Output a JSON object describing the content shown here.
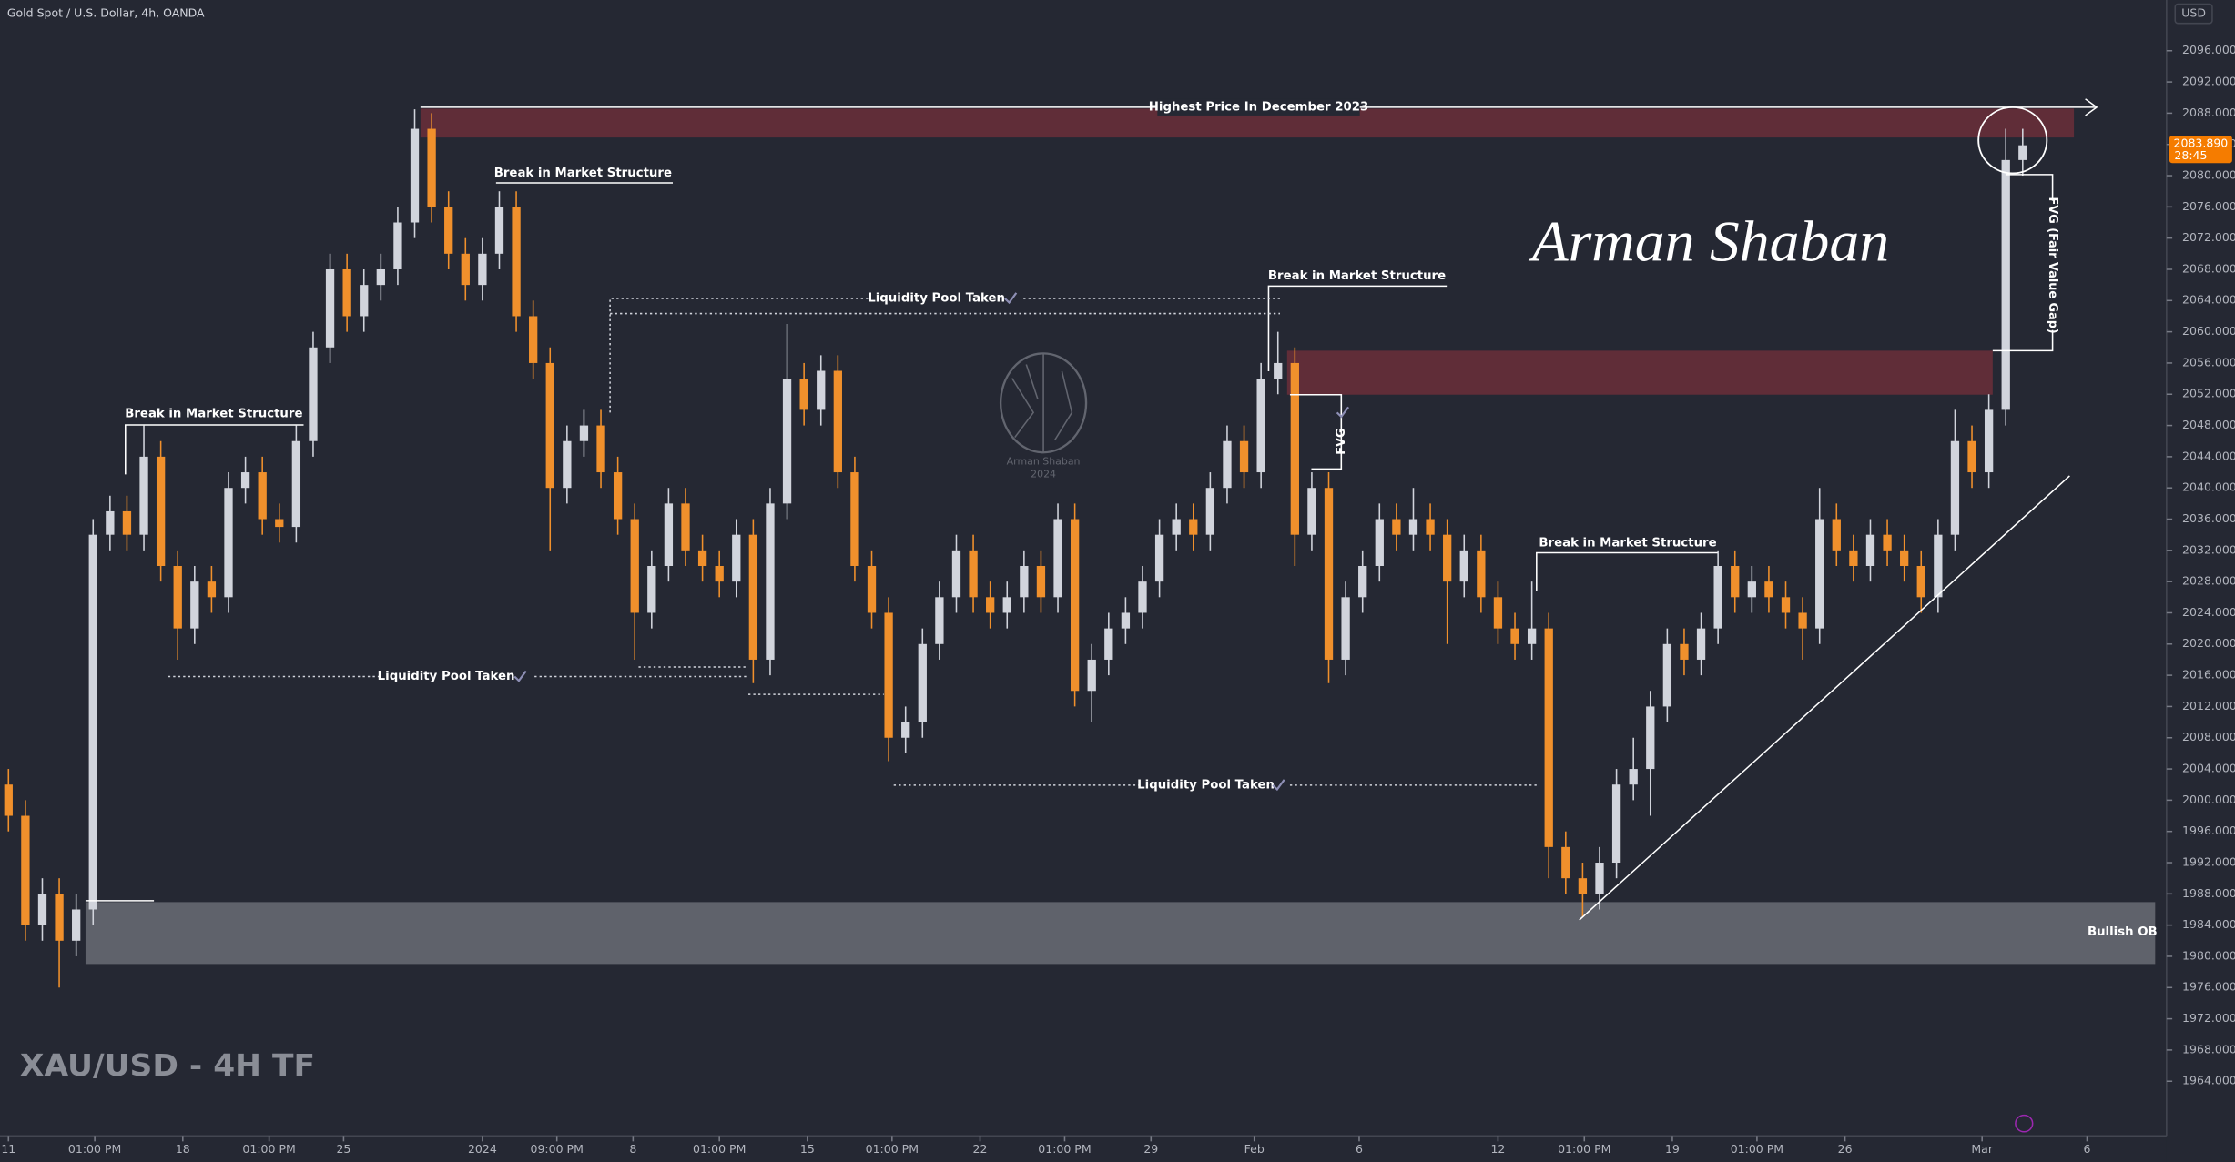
{
  "header": "Gold Spot / U.S. Dollar, 4h, OANDA",
  "currency": "USD",
  "watermark": "XAU/USD - 4H TF",
  "signature": "Arman Shaban",
  "logo": {
    "name": "Arman Shaban",
    "year": "2024"
  },
  "last_price": {
    "label": "2083.890",
    "countdown": "28:45"
  },
  "annotations": {
    "highest": "Highest Price In December 2023",
    "bms": [
      "Break in Market Structure",
      "Break in Market Structure",
      "Break in Market Structure",
      "Break in Market Structure"
    ],
    "liquidity": [
      "Liquidity Pool Taken",
      "Liquidity Pool Taken",
      "Liquidity Pool Taken"
    ],
    "fvg": "FVG",
    "fvg_full": "FVG (Fair Value Gap)",
    "bullish_ob": "Bullish OB"
  },
  "chart_data": {
    "type": "candlestick",
    "up_color": "#d1d4dc",
    "down_color": "#f0902c",
    "grid": false,
    "xlim": [
      -0.5,
      127.5
    ],
    "ylim": [
      1957,
      2102.5
    ],
    "xticks": [
      {
        "value": 0.0,
        "label": "11"
      },
      {
        "value": 5.1,
        "label": "01:00 PM"
      },
      {
        "value": 10.3,
        "label": "18"
      },
      {
        "value": 15.4,
        "label": "01:00 PM"
      },
      {
        "value": 19.8,
        "label": "25"
      },
      {
        "value": 28.0,
        "label": "2024"
      },
      {
        "value": 32.4,
        "label": "09:00 PM"
      },
      {
        "value": 36.9,
        "label": "8"
      },
      {
        "value": 42.0,
        "label": "01:00 PM"
      },
      {
        "value": 47.2,
        "label": "15"
      },
      {
        "value": 52.2,
        "label": "01:00 PM"
      },
      {
        "value": 57.4,
        "label": "22"
      },
      {
        "value": 62.4,
        "label": "01:00 PM"
      },
      {
        "value": 67.5,
        "label": "29"
      },
      {
        "value": 73.6,
        "label": "Feb"
      },
      {
        "value": 79.8,
        "label": "6"
      },
      {
        "value": 88.0,
        "label": "12"
      },
      {
        "value": 93.1,
        "label": "01:00 PM"
      },
      {
        "value": 98.3,
        "label": "19"
      },
      {
        "value": 103.3,
        "label": "01:00 PM"
      },
      {
        "value": 108.5,
        "label": "26"
      },
      {
        "value": 116.6,
        "label": "Mar"
      },
      {
        "value": 122.8,
        "label": "6"
      }
    ],
    "yticks": [
      {
        "value": 1964,
        "label": "1964.000"
      },
      {
        "value": 1968,
        "label": "1968.000"
      },
      {
        "value": 1972,
        "label": "1972.000"
      },
      {
        "value": 1976,
        "label": "1976.000"
      },
      {
        "value": 1980,
        "label": "1980.000"
      },
      {
        "value": 1984,
        "label": "1984.000"
      },
      {
        "value": 1988,
        "label": "1988.000"
      },
      {
        "value": 1992,
        "label": "1992.000"
      },
      {
        "value": 1996,
        "label": "1996.000"
      },
      {
        "value": 2000,
        "label": "2000.000"
      },
      {
        "value": 2004,
        "label": "2004.000"
      },
      {
        "value": 2008,
        "label": "2008.000"
      },
      {
        "value": 2012,
        "label": "2012.000"
      },
      {
        "value": 2016,
        "label": "2016.000"
      },
      {
        "value": 2020,
        "label": "2020.000"
      },
      {
        "value": 2024,
        "label": "2024.000"
      },
      {
        "value": 2028,
        "label": "2028.000"
      },
      {
        "value": 2032,
        "label": "2032.000"
      },
      {
        "value": 2036,
        "label": "2036.000"
      },
      {
        "value": 2040,
        "label": "2040.000"
      },
      {
        "value": 2044,
        "label": "2044.000"
      },
      {
        "value": 2048,
        "label": "2048.000"
      },
      {
        "value": 2052,
        "label": "2052.000"
      },
      {
        "value": 2056,
        "label": "2056.000"
      },
      {
        "value": 2060,
        "label": "2060.000"
      },
      {
        "value": 2064,
        "label": "2064.000"
      },
      {
        "value": 2068,
        "label": "2068.000"
      },
      {
        "value": 2072,
        "label": "2072.000"
      },
      {
        "value": 2076,
        "label": "2076.000"
      },
      {
        "value": 2080,
        "label": "2080.000"
      },
      {
        "value": 2084,
        "label": "2084.000"
      },
      {
        "value": 2088,
        "label": "2088.000"
      },
      {
        "value": 2092,
        "label": "2092.000"
      },
      {
        "value": 2096,
        "label": "2096.000"
      }
    ],
    "x": [
      0,
      1,
      2,
      3,
      4,
      5,
      6,
      7,
      8,
      9,
      10,
      11,
      12,
      13,
      14,
      15,
      16,
      17,
      18,
      19,
      20,
      21,
      22,
      23,
      24,
      25,
      26,
      27,
      28,
      29,
      30,
      31,
      32,
      33,
      34,
      35,
      36,
      37,
      38,
      39,
      40,
      41,
      42,
      43,
      44,
      45,
      46,
      47,
      48,
      49,
      50,
      51,
      52,
      53,
      54,
      55,
      56,
      57,
      58,
      59,
      60,
      61,
      62,
      63,
      64,
      65,
      66,
      67,
      68,
      69,
      70,
      71,
      72,
      73,
      74,
      75,
      76,
      77,
      78,
      79,
      80,
      81,
      82,
      83,
      84,
      85,
      86,
      87,
      88,
      89,
      90,
      91,
      92,
      93,
      94,
      95,
      96,
      97,
      98,
      99,
      100,
      101,
      102,
      103,
      104,
      105,
      106,
      107,
      108,
      109,
      110,
      111,
      112,
      113,
      114,
      115,
      116,
      117,
      118,
      119
    ],
    "open": [
      2002,
      1998,
      1984,
      1988,
      1982,
      1986,
      2034,
      2037,
      2034,
      2044,
      2030,
      2022,
      2028,
      2026,
      2040,
      2042,
      2036,
      2035,
      2046,
      2058,
      2068,
      2062,
      2066,
      2068,
      2074,
      2086,
      2076,
      2070,
      2066,
      2070,
      2076,
      2062,
      2056,
      2040,
      2046,
      2048,
      2042,
      2036,
      2024,
      2030,
      2038,
      2032,
      2030,
      2028,
      2034,
      2018,
      2038,
      2054,
      2050,
      2055,
      2042,
      2030,
      2024,
      2008,
      2010,
      2020,
      2026,
      2032,
      2026,
      2024,
      2026,
      2030,
      2026,
      2036,
      2014,
      2018,
      2022,
      2024,
      2028,
      2034,
      2036,
      2034,
      2040,
      2046,
      2042,
      2054,
      2056,
      2034,
      2040,
      2018,
      2026,
      2030,
      2036,
      2034,
      2036,
      2034,
      2028,
      2032,
      2026,
      2022,
      2020,
      2022,
      1994,
      1990,
      1988,
      1992,
      2002,
      2004,
      2012,
      2020,
      2018,
      2022,
      2030,
      2026,
      2028,
      2026,
      2024,
      2022,
      2036,
      2032,
      2030,
      2034,
      2032,
      2030,
      2026,
      2034,
      2046,
      2042,
      2050,
      2082
    ],
    "high": [
      2004,
      2000,
      1990,
      1990,
      1988,
      2036,
      2039,
      2039,
      2048,
      2046,
      2032,
      2030,
      2030,
      2042,
      2044,
      2044,
      2038,
      2048,
      2060,
      2070,
      2070,
      2068,
      2070,
      2076,
      2088.5,
      2088,
      2078,
      2072,
      2072,
      2078,
      2078,
      2064,
      2058,
      2048,
      2050,
      2050,
      2044,
      2038,
      2032,
      2040,
      2040,
      2034,
      2032,
      2036,
      2036,
      2040,
      2061,
      2056,
      2057,
      2057,
      2044,
      2032,
      2026,
      2012,
      2022,
      2028,
      2034,
      2034,
      2028,
      2028,
      2032,
      2032,
      2038,
      2038,
      2020,
      2024,
      2026,
      2030,
      2036,
      2038,
      2038,
      2042,
      2048,
      2048,
      2056,
      2060,
      2058,
      2042,
      2042,
      2028,
      2032,
      2038,
      2038,
      2040,
      2038,
      2036,
      2034,
      2034,
      2028,
      2024,
      2028,
      2024,
      1996,
      1992,
      1994,
      2004,
      2008,
      2014,
      2022,
      2022,
      2024,
      2032,
      2032,
      2030,
      2030,
      2028,
      2026,
      2040,
      2038,
      2034,
      2036,
      2036,
      2034,
      2032,
      2036,
      2050,
      2048,
      2052,
      2086,
      2086
    ],
    "low": [
      1996,
      1982,
      1982,
      1976,
      1980,
      1984,
      2032,
      2032,
      2032,
      2028,
      2018,
      2020,
      2024,
      2024,
      2038,
      2034,
      2033,
      2033,
      2044,
      2056,
      2060,
      2060,
      2064,
      2066,
      2072,
      2074,
      2068,
      2064,
      2064,
      2068,
      2060,
      2054,
      2032,
      2038,
      2044,
      2040,
      2034,
      2018,
      2022,
      2028,
      2030,
      2028,
      2026,
      2026,
      2015,
      2016,
      2036,
      2048,
      2048,
      2040,
      2028,
      2022,
      2005,
      2006,
      2008,
      2018,
      2024,
      2024,
      2022,
      2022,
      2024,
      2024,
      2024,
      2012,
      2010,
      2016,
      2020,
      2022,
      2026,
      2032,
      2032,
      2032,
      2038,
      2040,
      2040,
      2052,
      2030,
      2032,
      2015,
      2016,
      2024,
      2028,
      2032,
      2032,
      2032,
      2020,
      2026,
      2024,
      2020,
      2018,
      2018,
      1990,
      1988,
      1985,
      1986,
      1990,
      2000,
      1998,
      2010,
      2016,
      2016,
      2020,
      2024,
      2024,
      2024,
      2022,
      2018,
      2020,
      2030,
      2028,
      2028,
      2030,
      2028,
      2024,
      2024,
      2032,
      2040,
      2040,
      2048,
      2080
    ],
    "close": [
      1998,
      1984,
      1988,
      1982,
      1986,
      2034,
      2037,
      2034,
      2044,
      2030,
      2022,
      2028,
      2026,
      2040,
      2042,
      2036,
      2035,
      2046,
      2058,
      2068,
      2062,
      2066,
      2068,
      2074,
      2086,
      2076,
      2070,
      2066,
      2070,
      2076,
      2062,
      2056,
      2040,
      2046,
      2048,
      2042,
      2036,
      2024,
      2030,
      2038,
      2032,
      2030,
      2028,
      2034,
      2018,
      2038,
      2054,
      2050,
      2055,
      2042,
      2030,
      2024,
      2008,
      2010,
      2020,
      2026,
      2032,
      2026,
      2024,
      2026,
      2030,
      2026,
      2036,
      2014,
      2018,
      2022,
      2024,
      2028,
      2034,
      2036,
      2034,
      2040,
      2046,
      2042,
      2054,
      2056,
      2034,
      2040,
      2018,
      2026,
      2030,
      2036,
      2034,
      2036,
      2034,
      2028,
      2032,
      2026,
      2022,
      2020,
      2022,
      1994,
      1990,
      1988,
      1992,
      2002,
      2004,
      2012,
      2020,
      2018,
      2022,
      2030,
      2026,
      2028,
      2026,
      2024,
      2022,
      2036,
      2032,
      2030,
      2034,
      2032,
      2030,
      2026,
      2034,
      2046,
      2042,
      2050,
      2082,
      2083.89
    ]
  }
}
